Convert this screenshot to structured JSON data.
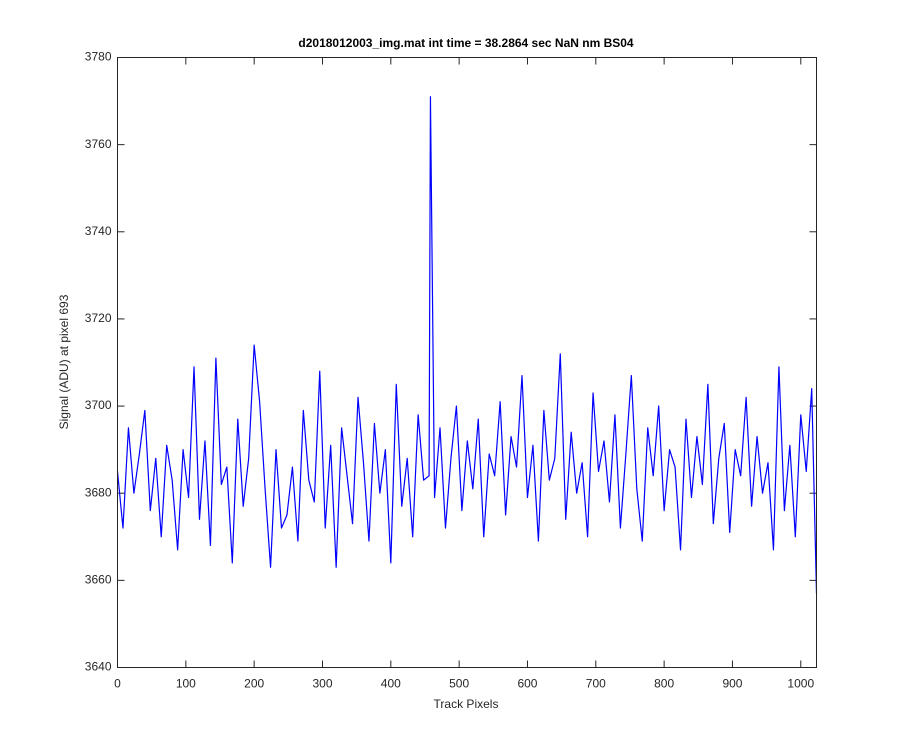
{
  "chart_data": {
    "type": "line",
    "title": "d2018012003_img.mat int time = 38.2864 sec  NaN nm BS04",
    "xlabel": "Track Pixels",
    "ylabel": "Signal (ADU) at pixel 693",
    "color": "#0000ff",
    "xlim": [
      0,
      1023
    ],
    "ylim": [
      3640,
      3780
    ],
    "xticks": [
      0,
      100,
      200,
      300,
      400,
      500,
      600,
      700,
      800,
      900,
      1000
    ],
    "yticks": [
      3640,
      3660,
      3680,
      3700,
      3720,
      3740,
      3760,
      3780
    ],
    "x": [
      0,
      8,
      16,
      24,
      32,
      40,
      48,
      56,
      64,
      72,
      80,
      88,
      96,
      104,
      112,
      120,
      128,
      136,
      144,
      152,
      160,
      168,
      176,
      184,
      192,
      200,
      208,
      216,
      224,
      232,
      240,
      248,
      256,
      264,
      272,
      280,
      288,
      296,
      304,
      312,
      320,
      328,
      336,
      344,
      352,
      360,
      368,
      376,
      384,
      392,
      400,
      408,
      416,
      424,
      432,
      440,
      448,
      456,
      458,
      464,
      472,
      480,
      488,
      496,
      504,
      512,
      520,
      528,
      536,
      544,
      552,
      560,
      568,
      576,
      584,
      592,
      600,
      608,
      616,
      624,
      632,
      640,
      648,
      656,
      664,
      672,
      680,
      688,
      696,
      704,
      712,
      720,
      728,
      736,
      744,
      752,
      760,
      768,
      776,
      784,
      792,
      800,
      808,
      816,
      824,
      832,
      840,
      848,
      856,
      864,
      872,
      880,
      888,
      896,
      904,
      912,
      920,
      928,
      936,
      944,
      952,
      960,
      968,
      976,
      984,
      992,
      1000,
      1008,
      1016,
      1023
    ],
    "values": [
      3685,
      3672,
      3695,
      3680,
      3689,
      3699,
      3676,
      3688,
      3670,
      3691,
      3683,
      3667,
      3690,
      3679,
      3709,
      3674,
      3692,
      3668,
      3711,
      3682,
      3686,
      3664,
      3697,
      3677,
      3688,
      3714,
      3701,
      3681,
      3663,
      3690,
      3672,
      3675,
      3686,
      3669,
      3699,
      3683,
      3678,
      3708,
      3672,
      3691,
      3663,
      3695,
      3684,
      3673,
      3702,
      3687,
      3669,
      3696,
      3680,
      3690,
      3664,
      3705,
      3677,
      3688,
      3670,
      3698,
      3683,
      3684,
      3771,
      3679,
      3695,
      3672,
      3688,
      3700,
      3676,
      3692,
      3681,
      3697,
      3670,
      3689,
      3684,
      3701,
      3675,
      3693,
      3686,
      3707,
      3679,
      3691,
      3669,
      3699,
      3683,
      3688,
      3712,
      3674,
      3694,
      3680,
      3687,
      3670,
      3703,
      3685,
      3692,
      3678,
      3698,
      3672,
      3689,
      3707,
      3681,
      3669,
      3695,
      3684,
      3700,
      3676,
      3690,
      3686,
      3667,
      3697,
      3679,
      3693,
      3682,
      3705,
      3673,
      3688,
      3696,
      3671,
      3690,
      3684,
      3702,
      3677,
      3693,
      3680,
      3687,
      3667,
      3709,
      3676,
      3691,
      3670,
      3698,
      3685,
      3704,
      3657
    ]
  }
}
